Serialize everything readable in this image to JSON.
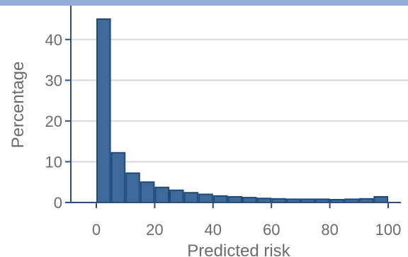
{
  "header_band": {
    "text": "",
    "color": "#94acd8"
  },
  "chart_data": {
    "type": "bar",
    "title": "",
    "xlabel": "Predicted risk",
    "ylabel": "Percentage",
    "xlim": [
      0,
      100
    ],
    "ylim": [
      0,
      45
    ],
    "xticks": [
      0,
      20,
      40,
      60,
      80,
      100
    ],
    "yticks": [
      0,
      10,
      20,
      30,
      40
    ],
    "grid": "horizontal",
    "bar_color": "#3e6a9a",
    "bar_edge_color": "#1f4a7a",
    "axis_color": "#2f4f7a",
    "bins": [
      {
        "start": 0,
        "end": 5,
        "value": 45.0
      },
      {
        "start": 5,
        "end": 10,
        "value": 12.2
      },
      {
        "start": 10,
        "end": 15,
        "value": 7.2
      },
      {
        "start": 15,
        "end": 20,
        "value": 5.0
      },
      {
        "start": 20,
        "end": 25,
        "value": 3.7
      },
      {
        "start": 25,
        "end": 30,
        "value": 3.0
      },
      {
        "start": 30,
        "end": 35,
        "value": 2.4
      },
      {
        "start": 35,
        "end": 40,
        "value": 2.0
      },
      {
        "start": 40,
        "end": 45,
        "value": 1.6
      },
      {
        "start": 45,
        "end": 50,
        "value": 1.4
      },
      {
        "start": 50,
        "end": 55,
        "value": 1.2
      },
      {
        "start": 55,
        "end": 60,
        "value": 1.0
      },
      {
        "start": 60,
        "end": 65,
        "value": 0.9
      },
      {
        "start": 65,
        "end": 70,
        "value": 0.8
      },
      {
        "start": 70,
        "end": 75,
        "value": 0.8
      },
      {
        "start": 75,
        "end": 80,
        "value": 0.8
      },
      {
        "start": 80,
        "end": 85,
        "value": 0.7
      },
      {
        "start": 85,
        "end": 90,
        "value": 0.8
      },
      {
        "start": 90,
        "end": 95,
        "value": 0.9
      },
      {
        "start": 95,
        "end": 100,
        "value": 1.4
      }
    ]
  }
}
